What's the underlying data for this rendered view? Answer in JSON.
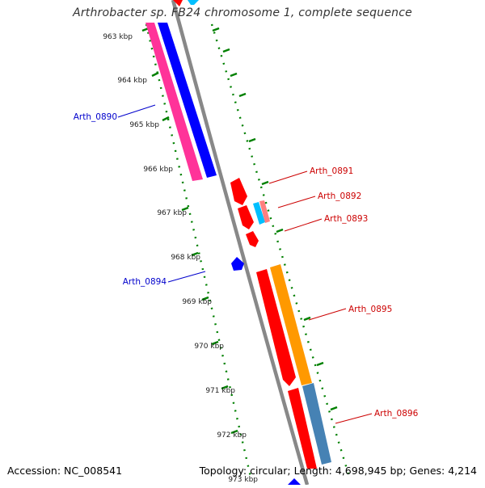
{
  "title": "Arthrobacter sp. FB24 chromosome 1, complete sequence",
  "footer": {
    "accession": "Accession: NC_008541",
    "info": "Topology: circular; Length: 4,698,945 bp; Genes: 4,214"
  },
  "map": {
    "tick_labels": [
      "963 kbp",
      "964 kbp",
      "965 kbp",
      "966 kbp",
      "967 kbp",
      "968 kbp",
      "969 kbp",
      "970 kbp",
      "971 kbp",
      "972 kbp",
      "973 kbp"
    ],
    "genes": [
      {
        "id": "Arth_0890",
        "strand": "reverse",
        "colors": [
          "#ff3399",
          "#0000ff"
        ]
      },
      {
        "id": "Arth_0891",
        "strand": "forward",
        "colors": [
          "#ff0000"
        ]
      },
      {
        "id": "Arth_0892",
        "strand": "forward",
        "colors": [
          "#ff0000",
          "#00bfff",
          "#ff7f7f"
        ]
      },
      {
        "id": "Arth_0893",
        "strand": "forward",
        "colors": [
          "#ff0000"
        ]
      },
      {
        "id": "Arth_0894",
        "strand": "reverse",
        "colors": [
          "#0000ff"
        ]
      },
      {
        "id": "Arth_0895",
        "strand": "forward",
        "colors": [
          "#ff0000",
          "#ff9900"
        ]
      },
      {
        "id": "Arth_0896",
        "strand": "forward",
        "colors": [
          "#ff0000",
          "#4682b4"
        ]
      }
    ],
    "label_colors": {
      "forward": "#cc0000",
      "reverse": "#0000cc"
    },
    "backbone_color": "#888888",
    "tick_color": "#008000"
  }
}
